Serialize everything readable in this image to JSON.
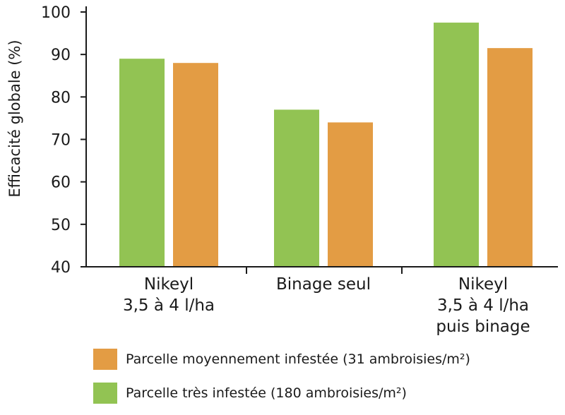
{
  "chart_data": {
    "type": "bar",
    "title": "",
    "ylabel": "Efficacité globale (%)",
    "xlabel": "",
    "ylim": [
      40,
      100
    ],
    "yticks": [
      40,
      50,
      60,
      70,
      80,
      90,
      100
    ],
    "categories": [
      [
        "Nikeyl",
        "3,5 à 4 l/ha"
      ],
      [
        "Binage seul"
      ],
      [
        "Nikeyl",
        "3,5 à 4 l/ha",
        "puis binage"
      ]
    ],
    "series": [
      {
        "name": "Parcelle très infestée (180 ambroisies/m²)",
        "color": "#92c353",
        "values": [
          89,
          77,
          97.5
        ]
      },
      {
        "name": "Parcelle moyennement infestée (31 ambroisies/m²)",
        "color": "#e39c44",
        "values": [
          88,
          74,
          91.5
        ]
      }
    ],
    "legend": [
      {
        "label": "Parcelle moyennement infestée (31 ambroisies/m²)",
        "color": "#e39c44"
      },
      {
        "label": "Parcelle très infestée (180 ambroisies/m²)",
        "color": "#92c353"
      }
    ]
  }
}
